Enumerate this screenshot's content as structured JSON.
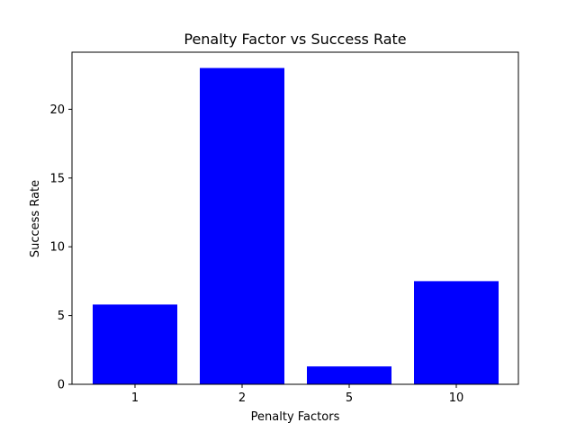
{
  "chart_data": {
    "type": "bar",
    "title": "Penalty Factor vs Success Rate",
    "xlabel": "Penalty Factors",
    "ylabel": "Success Rate",
    "categories": [
      "1",
      "2",
      "5",
      "10"
    ],
    "values": [
      5.8,
      23.0,
      1.3,
      7.5
    ],
    "ylim": [
      0,
      24.15
    ],
    "yticks": [
      0,
      5,
      10,
      15,
      20
    ],
    "grid": false,
    "bar_color": "#0000ff"
  }
}
